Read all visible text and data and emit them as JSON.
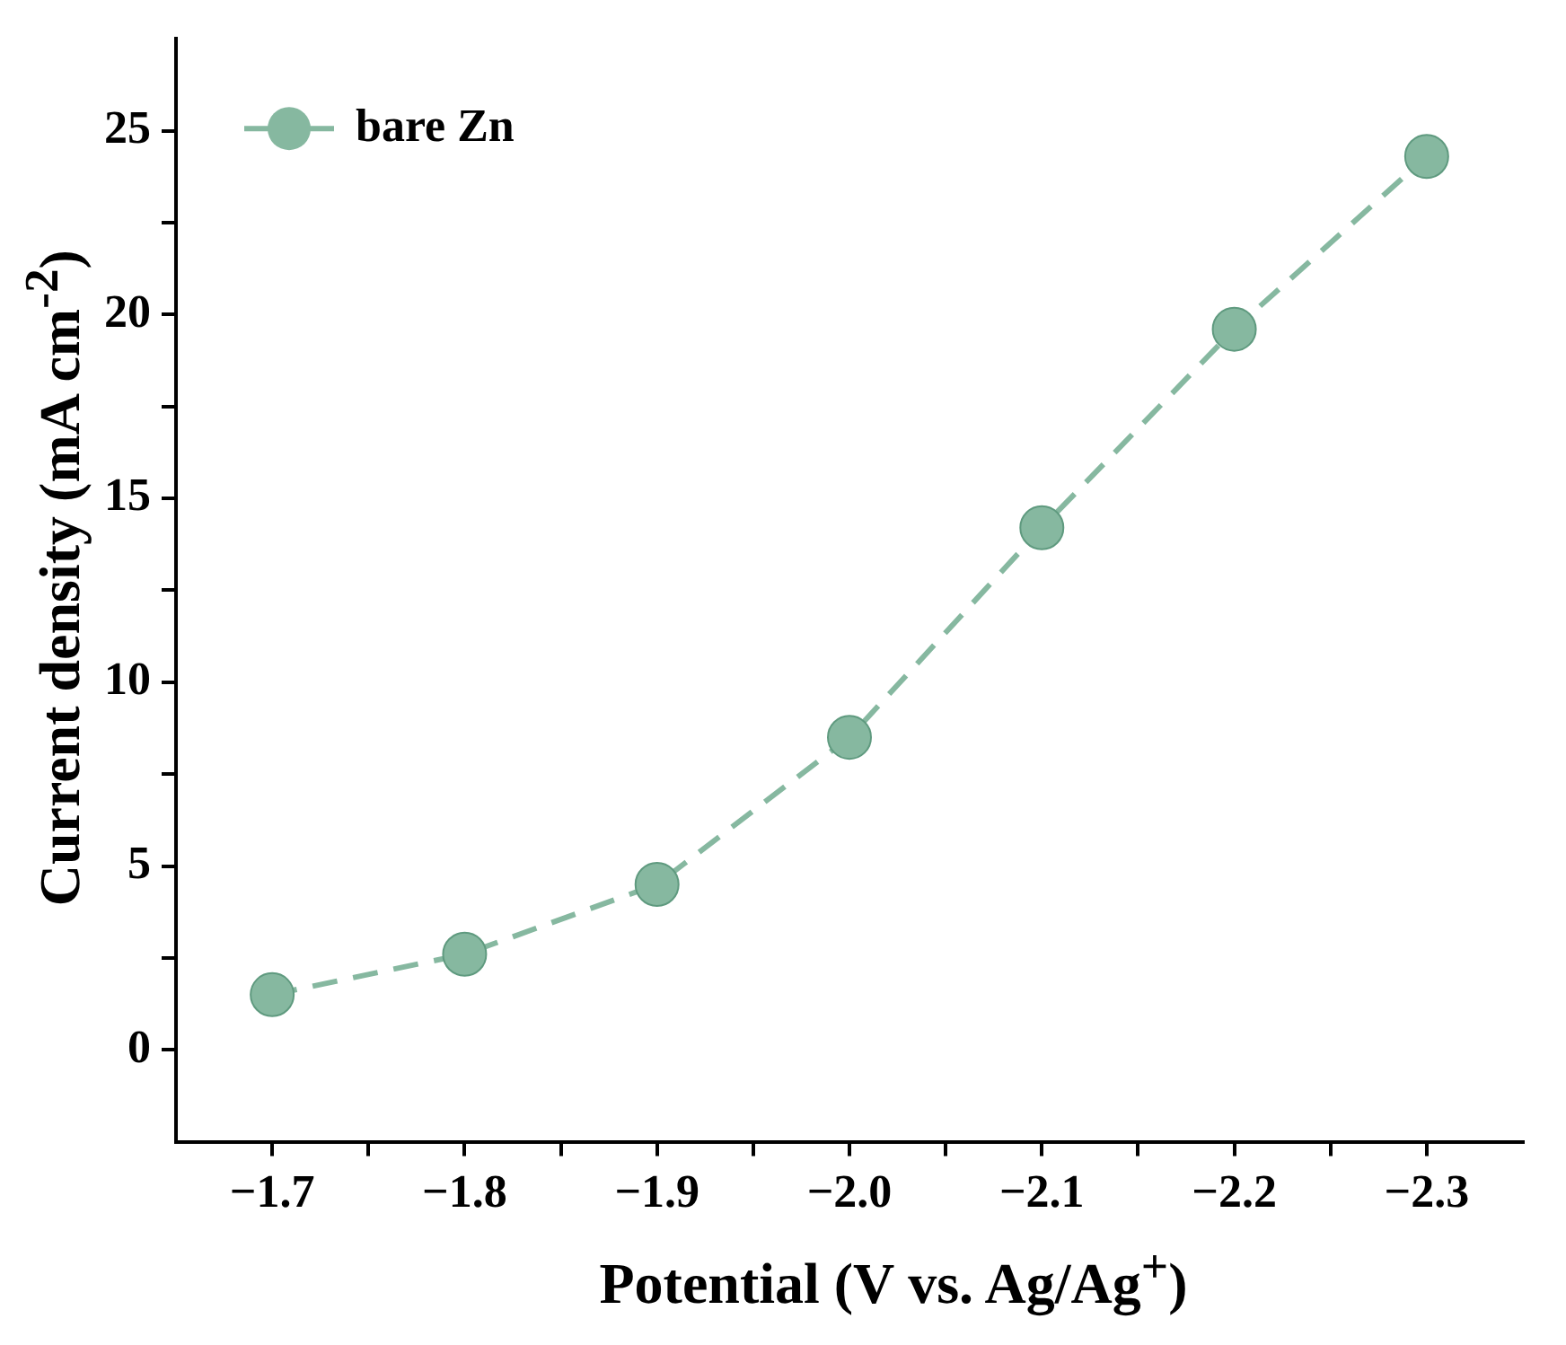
{
  "chart_data": {
    "type": "line",
    "xlabel": "Potential (V vs. Ag/Ag$^{+}$)",
    "ylabel": "Current density (mA cm$^{-2}$)",
    "x": [
      -1.7,
      -1.8,
      -1.9,
      -2.0,
      -2.1,
      -2.2,
      -2.3
    ],
    "series": [
      {
        "name": "bare Zn",
        "color": "#86b8a0",
        "values": [
          1.5,
          2.6,
          4.5,
          8.5,
          14.2,
          19.6,
          24.3
        ]
      }
    ],
    "xlim": [
      -1.65,
      -2.35
    ],
    "ylim": [
      -2.5,
      27.5
    ],
    "xticks": [
      {
        "value": -1.7,
        "label": "−1.7"
      },
      {
        "value": -1.75,
        "label": null
      },
      {
        "value": -1.8,
        "label": "−1.8"
      },
      {
        "value": -1.85,
        "label": null
      },
      {
        "value": -1.9,
        "label": "−1.9"
      },
      {
        "value": -1.95,
        "label": null
      },
      {
        "value": -2.0,
        "label": "−2.0"
      },
      {
        "value": -2.05,
        "label": null
      },
      {
        "value": -2.1,
        "label": "−2.1"
      },
      {
        "value": -2.15,
        "label": null
      },
      {
        "value": -2.2,
        "label": "−2.2"
      },
      {
        "value": -2.25,
        "label": null
      },
      {
        "value": -2.3,
        "label": "−2.3"
      }
    ],
    "yticks": [
      0,
      {
        "value": 2.5,
        "label": null
      },
      5,
      {
        "value": 7.5,
        "label": null
      },
      10,
      {
        "value": 12.5,
        "label": null
      },
      15,
      {
        "value": 17.5,
        "label": null
      },
      20,
      {
        "value": 22.5,
        "label": null
      },
      25
    ],
    "grid": false,
    "legend": "top left",
    "marker": "circle",
    "line_style": "dashed"
  }
}
